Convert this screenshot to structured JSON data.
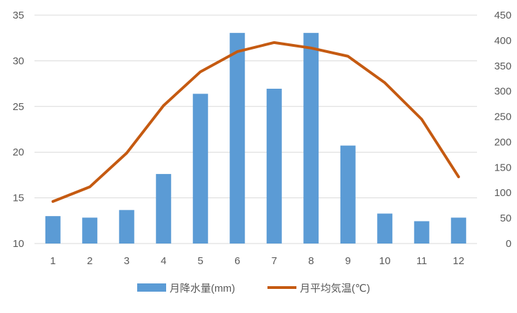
{
  "chart_data": {
    "type": "bar+line",
    "categories": [
      "1",
      "2",
      "3",
      "4",
      "5",
      "6",
      "7",
      "8",
      "9",
      "10",
      "11",
      "12"
    ],
    "series": [
      {
        "name": "月降水量(mm)",
        "kind": "bar",
        "axis": "right",
        "color": "#5B9BD5",
        "values": [
          54,
          51,
          66,
          137,
          295,
          415,
          305,
          415,
          193,
          59,
          44,
          51
        ]
      },
      {
        "name": "月平均気温(℃)",
        "kind": "line",
        "axis": "left",
        "color": "#C55A11",
        "values": [
          14.6,
          16.2,
          19.9,
          25.1,
          28.8,
          31.0,
          32.0,
          31.4,
          30.5,
          27.6,
          23.6,
          17.3
        ]
      }
    ],
    "y_left": {
      "min": 10,
      "max": 35,
      "ticks": [
        "10",
        "15",
        "20",
        "25",
        "30",
        "35"
      ]
    },
    "y_right": {
      "min": 0,
      "max": 450,
      "ticks": [
        "0",
        "50",
        "100",
        "150",
        "200",
        "250",
        "300",
        "350",
        "400",
        "450"
      ]
    },
    "grid": true,
    "legend_position": "bottom"
  }
}
